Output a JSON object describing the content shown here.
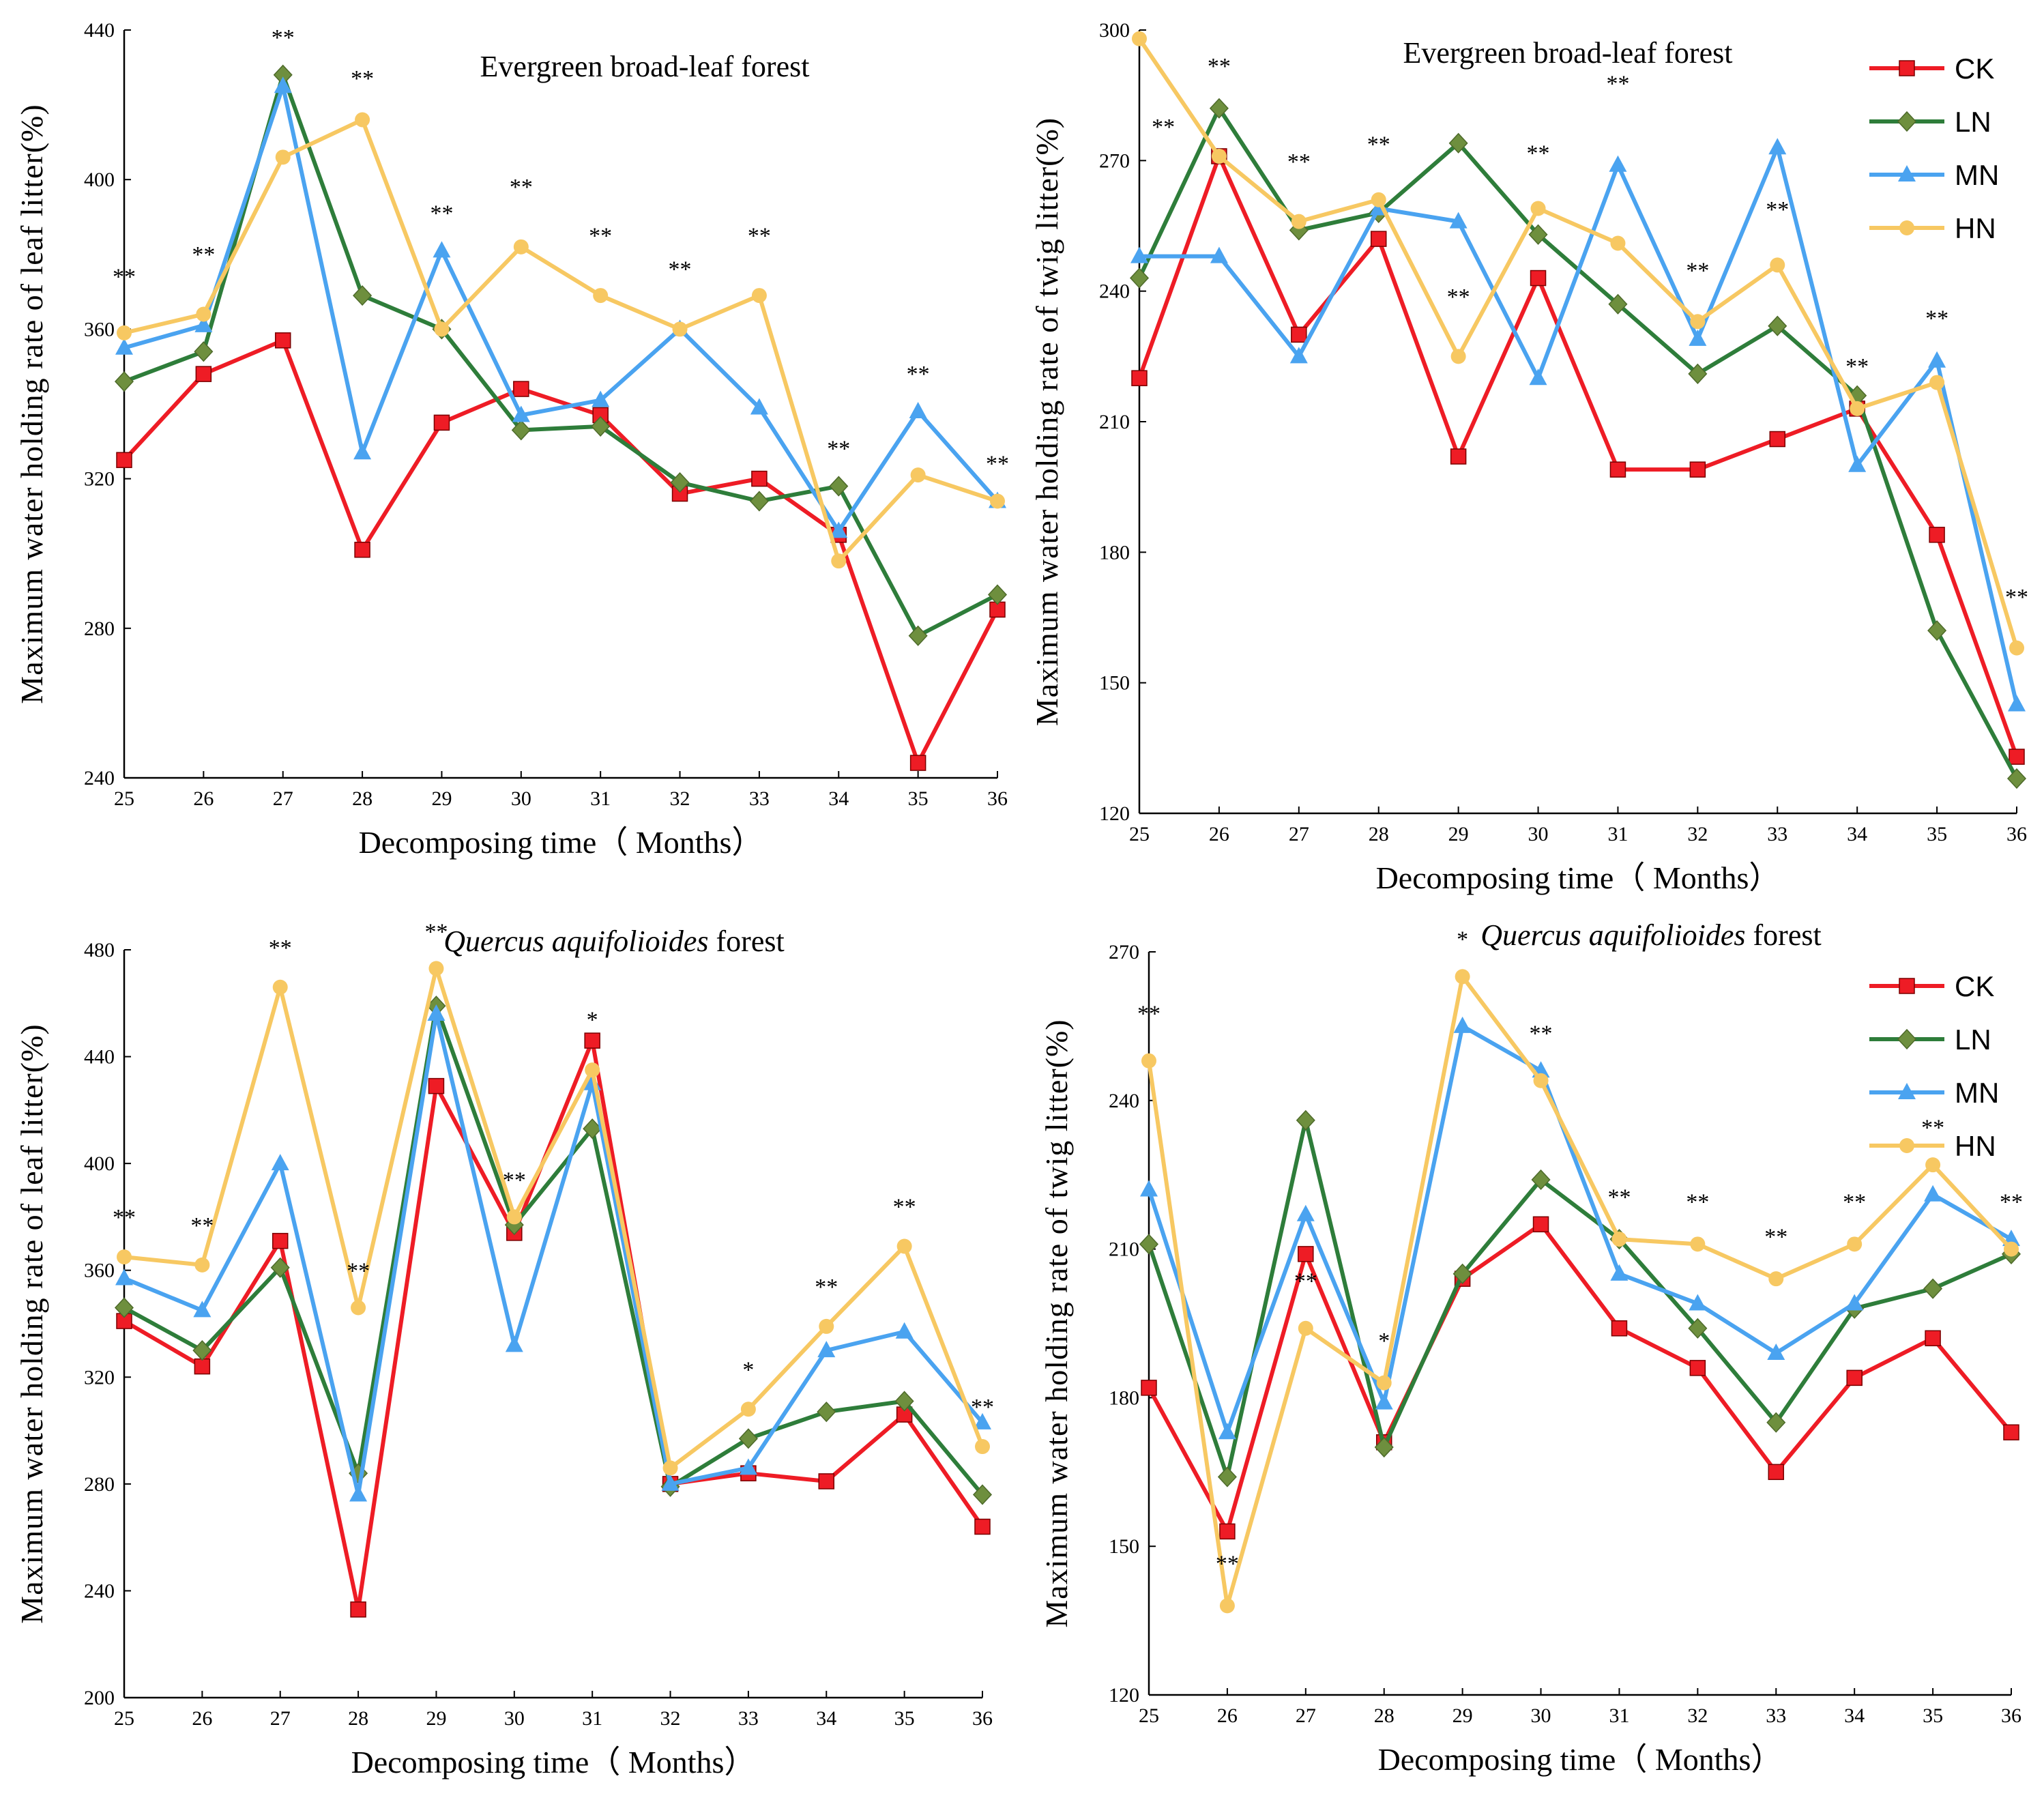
{
  "series_colors": {
    "CK": "#ee1c25",
    "LN": "#2e7d3a",
    "MN": "#4aa3f0",
    "HN": "#f7c862"
  },
  "series_markers": {
    "CK": "square",
    "LN": "diamond",
    "MN": "triangle",
    "HN": "circle"
  },
  "chart_data": [
    {
      "type": "line",
      "title": "Evergreen broad-leaf forest",
      "title_italic": "",
      "xlabel": "Decomposing time（ Months）",
      "ylabel": "Maximum water holding rate of leaf litter(%)",
      "x": [
        25,
        26,
        27,
        28,
        29,
        30,
        31,
        32,
        33,
        34,
        35,
        36
      ],
      "ylim": [
        240,
        440
      ],
      "yticks": [
        240,
        280,
        320,
        360,
        400,
        440
      ],
      "legend": false,
      "series": [
        {
          "name": "CK",
          "values": [
            325,
            348,
            357,
            301,
            335,
            344,
            337,
            316,
            320,
            305,
            244,
            285
          ]
        },
        {
          "name": "LN",
          "values": [
            346,
            354,
            428,
            369,
            360,
            333,
            334,
            319,
            314,
            318,
            278,
            289
          ]
        },
        {
          "name": "MN",
          "values": [
            355,
            361,
            425,
            327,
            381,
            337,
            341,
            360,
            339,
            306,
            338,
            314
          ]
        },
        {
          "name": "HN",
          "values": [
            359,
            364,
            406,
            416,
            360,
            382,
            369,
            360,
            369,
            298,
            321,
            314
          ]
        }
      ],
      "annotations": [
        {
          "x": 25,
          "y": 372,
          "text": "**"
        },
        {
          "x": 26,
          "y": 378,
          "text": "**"
        },
        {
          "x": 27,
          "y": 436,
          "text": "**"
        },
        {
          "x": 28,
          "y": 425,
          "text": "**"
        },
        {
          "x": 29,
          "y": 389,
          "text": "**"
        },
        {
          "x": 30,
          "y": 396,
          "text": "**"
        },
        {
          "x": 31,
          "y": 383,
          "text": "**"
        },
        {
          "x": 32,
          "y": 374,
          "text": "**"
        },
        {
          "x": 33,
          "y": 383,
          "text": "**"
        },
        {
          "x": 34,
          "y": 326,
          "text": "**"
        },
        {
          "x": 35,
          "y": 346,
          "text": "**"
        },
        {
          "x": 36,
          "y": 322,
          "text": "**"
        }
      ]
    },
    {
      "type": "line",
      "title": "Evergreen broad-leaf forest",
      "title_italic": "",
      "xlabel": "Decomposing time（ Months）",
      "ylabel": "Maximum water holding rate of twig litter(%)",
      "x": [
        25,
        26,
        27,
        28,
        29,
        30,
        31,
        32,
        33,
        34,
        35,
        36
      ],
      "ylim": [
        120,
        300
      ],
      "yticks": [
        120,
        150,
        180,
        210,
        240,
        270,
        300
      ],
      "legend": true,
      "series": [
        {
          "name": "CK",
          "values": [
            220,
            271,
            230,
            252,
            202,
            243,
            199,
            199,
            206,
            213,
            184,
            133
          ]
        },
        {
          "name": "LN",
          "values": [
            243,
            282,
            254,
            258,
            274,
            253,
            237,
            221,
            232,
            216,
            162,
            128
          ]
        },
        {
          "name": "MN",
          "values": [
            248,
            248,
            225,
            259,
            256,
            220,
            269,
            229,
            273,
            200,
            224,
            145
          ]
        },
        {
          "name": "HN",
          "values": [
            298,
            271,
            256,
            261,
            225,
            259,
            251,
            233,
            246,
            213,
            219,
            158
          ]
        }
      ],
      "annotations": [
        {
          "x": 25.3,
          "y": 276,
          "text": "**"
        },
        {
          "x": 26,
          "y": 290,
          "text": "**"
        },
        {
          "x": 27,
          "y": 268,
          "text": "**"
        },
        {
          "x": 28,
          "y": 272,
          "text": "**"
        },
        {
          "x": 29,
          "y": 237,
          "text": "**"
        },
        {
          "x": 30,
          "y": 270,
          "text": "**"
        },
        {
          "x": 31,
          "y": 286,
          "text": "**"
        },
        {
          "x": 32,
          "y": 243,
          "text": "**"
        },
        {
          "x": 33,
          "y": 257,
          "text": "**"
        },
        {
          "x": 34,
          "y": 221,
          "text": "**"
        },
        {
          "x": 35,
          "y": 232,
          "text": "**"
        },
        {
          "x": 36,
          "y": 168,
          "text": "**"
        }
      ]
    },
    {
      "type": "line",
      "title": " forest",
      "title_italic": "Quercus aquifolioides",
      "xlabel": "Decomposing time（ Months）",
      "ylabel": "Maximum water holding rate of leaf litter(%)",
      "x": [
        25,
        26,
        27,
        28,
        29,
        30,
        31,
        32,
        33,
        34,
        35,
        36
      ],
      "ylim": [
        200,
        480
      ],
      "yticks": [
        200,
        240,
        280,
        320,
        360,
        400,
        440,
        480
      ],
      "legend": false,
      "series": [
        {
          "name": "CK",
          "values": [
            341,
            324,
            371,
            233,
            429,
            374,
            446,
            280,
            284,
            281,
            306,
            264
          ]
        },
        {
          "name": "LN",
          "values": [
            346,
            330,
            361,
            284,
            459,
            377,
            413,
            279,
            297,
            307,
            311,
            276
          ]
        },
        {
          "name": "MN",
          "values": [
            357,
            345,
            400,
            276,
            456,
            332,
            430,
            280,
            286,
            330,
            337,
            303
          ]
        },
        {
          "name": "HN",
          "values": [
            365,
            362,
            466,
            346,
            473,
            380,
            435,
            286,
            308,
            339,
            369,
            294
          ]
        }
      ],
      "annotations": [
        {
          "x": 25,
          "y": 377,
          "text": "**"
        },
        {
          "x": 26,
          "y": 374,
          "text": "**"
        },
        {
          "x": 27,
          "y": 478,
          "text": "**"
        },
        {
          "x": 28,
          "y": 357,
          "text": "**"
        },
        {
          "x": 29,
          "y": 484,
          "text": "**"
        },
        {
          "x": 30,
          "y": 391,
          "text": "**"
        },
        {
          "x": 31,
          "y": 451,
          "text": "*"
        },
        {
          "x": 33,
          "y": 320,
          "text": "*"
        },
        {
          "x": 34,
          "y": 351,
          "text": "**"
        },
        {
          "x": 35,
          "y": 381,
          "text": "**"
        },
        {
          "x": 36,
          "y": 306,
          "text": "**"
        }
      ]
    },
    {
      "type": "line",
      "title": " forest",
      "title_italic": "Quercus aquifolioides",
      "xlabel": "Decomposing time（ Months）",
      "ylabel": "Maximum water holding rate of twig litter(%)",
      "x": [
        25,
        26,
        27,
        28,
        29,
        30,
        31,
        32,
        33,
        34,
        35,
        36
      ],
      "ylim": [
        120,
        270
      ],
      "yticks": [
        120,
        150,
        180,
        210,
        240,
        270
      ],
      "legend": true,
      "series": [
        {
          "name": "CK",
          "values": [
            182,
            153,
            209,
            171,
            204,
            215,
            194,
            186,
            165,
            184,
            192,
            173
          ]
        },
        {
          "name": "LN",
          "values": [
            211,
            164,
            236,
            170,
            205,
            224,
            212,
            194,
            175,
            198,
            202,
            209
          ]
        },
        {
          "name": "MN",
          "values": [
            222,
            173,
            217,
            179,
            255,
            246,
            205,
            199,
            189,
            199,
            221,
            212
          ]
        },
        {
          "name": "HN",
          "values": [
            248,
            138,
            194,
            183,
            265,
            244,
            212,
            211,
            204,
            211,
            227,
            210
          ]
        }
      ],
      "annotations": [
        {
          "x": 25,
          "y": 256,
          "text": "**"
        },
        {
          "x": 26,
          "y": 145,
          "text": "**"
        },
        {
          "x": 27,
          "y": 202,
          "text": "**"
        },
        {
          "x": 28,
          "y": 190,
          "text": "*"
        },
        {
          "x": 29,
          "y": 271,
          "text": "*"
        },
        {
          "x": 30,
          "y": 252,
          "text": "**"
        },
        {
          "x": 31,
          "y": 219,
          "text": "**"
        },
        {
          "x": 32,
          "y": 218,
          "text": "**"
        },
        {
          "x": 33,
          "y": 211,
          "text": "**"
        },
        {
          "x": 34,
          "y": 218,
          "text": "**"
        },
        {
          "x": 35,
          "y": 233,
          "text": "**"
        },
        {
          "x": 36,
          "y": 218,
          "text": "**"
        }
      ]
    }
  ]
}
